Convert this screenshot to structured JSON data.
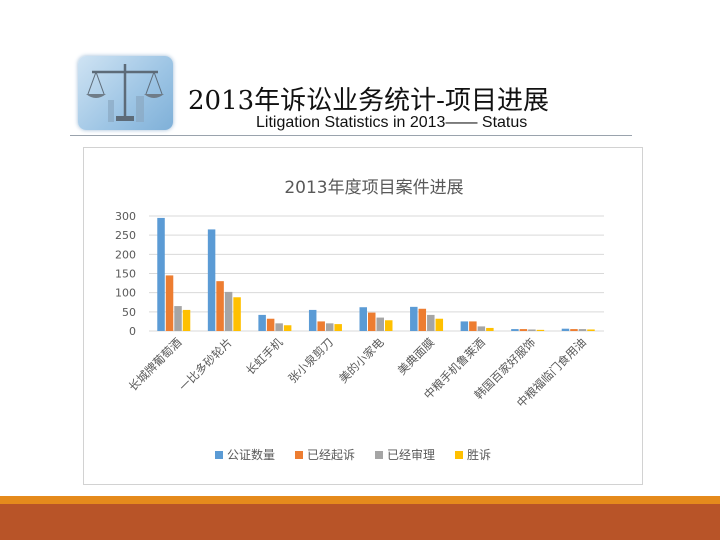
{
  "slide": {
    "title": "2013年诉讼业务统计-项目进展",
    "subtitle": "Litigation Statistics in 2013—— Status"
  },
  "logo_icon": "scales-of-justice-icon",
  "chart_data": {
    "type": "bar",
    "title": "2013年度项目案件进展",
    "categories": [
      "长城牌葡萄酒",
      "一比多砂轮片",
      "长虹手机",
      "张小泉剪刀",
      "美的小家电",
      "美典面膜",
      "中粮手机鲁莱酒",
      "韩国百家好服饰",
      "中粮福临门食用油"
    ],
    "series": [
      {
        "name": "公证数量",
        "color": "#5b9bd5",
        "values": [
          295,
          265,
          42,
          55,
          62,
          63,
          25,
          5,
          6
        ]
      },
      {
        "name": "已经起诉",
        "color": "#ed7d31",
        "values": [
          145,
          130,
          32,
          25,
          48,
          58,
          25,
          5,
          5
        ]
      },
      {
        "name": "已经审理",
        "color": "#a5a5a5",
        "values": [
          65,
          102,
          20,
          20,
          35,
          42,
          12,
          4,
          5
        ]
      },
      {
        "name": "胜诉",
        "color": "#ffc000",
        "values": [
          55,
          88,
          15,
          18,
          28,
          32,
          8,
          3,
          4
        ]
      }
    ],
    "y_ticks": [
      "0",
      "50",
      "100",
      "150",
      "200",
      "250",
      "300"
    ],
    "ylim": [
      0,
      300
    ],
    "grid": true,
    "legend": "bottom"
  }
}
